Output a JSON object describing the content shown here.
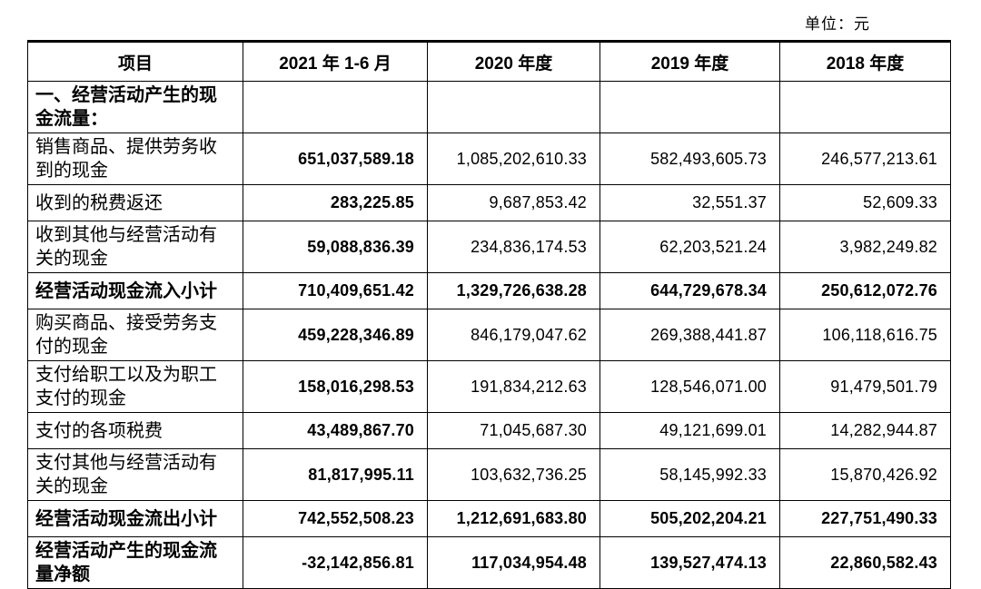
{
  "page": {
    "unit_label": "单位：元"
  },
  "table": {
    "columns": [
      "项目",
      "2021 年 1-6 月",
      "2020 年度",
      "2019 年度",
      "2018 年度"
    ],
    "rows": [
      {
        "label": "一、经营活动产生的现金流量：",
        "bold_label": true,
        "bold_values": false,
        "values": [
          "",
          "",
          "",
          ""
        ]
      },
      {
        "label": "销售商品、提供劳务收到的现金",
        "bold_label": false,
        "bold_values": false,
        "values": [
          "651,037,589.18",
          "1,085,202,610.33",
          "582,493,605.73",
          "246,577,213.61"
        ]
      },
      {
        "label": "收到的税费返还",
        "bold_label": false,
        "bold_values": false,
        "values": [
          "283,225.85",
          "9,687,853.42",
          "32,551.37",
          "52,609.33"
        ]
      },
      {
        "label": "收到其他与经营活动有关的现金",
        "bold_label": false,
        "bold_values": false,
        "values": [
          "59,088,836.39",
          "234,836,174.53",
          "62,203,521.24",
          "3,982,249.82"
        ]
      },
      {
        "label": "经营活动现金流入小计",
        "bold_label": true,
        "bold_values": true,
        "values": [
          "710,409,651.42",
          "1,329,726,638.28",
          "644,729,678.34",
          "250,612,072.76"
        ]
      },
      {
        "label": "购买商品、接受劳务支付的现金",
        "bold_label": false,
        "bold_values": false,
        "values": [
          "459,228,346.89",
          "846,179,047.62",
          "269,388,441.87",
          "106,118,616.75"
        ]
      },
      {
        "label": "支付给职工以及为职工支付的现金",
        "bold_label": false,
        "bold_values": false,
        "values": [
          "158,016,298.53",
          "191,834,212.63",
          "128,546,071.00",
          "91,479,501.79"
        ]
      },
      {
        "label": "支付的各项税费",
        "bold_label": false,
        "bold_values": false,
        "values": [
          "43,489,867.70",
          "71,045,687.30",
          "49,121,699.01",
          "14,282,944.87"
        ]
      },
      {
        "label": "支付其他与经营活动有关的现金",
        "bold_label": false,
        "bold_values": false,
        "values": [
          "81,817,995.11",
          "103,632,736.25",
          "58,145,992.33",
          "15,870,426.92"
        ]
      },
      {
        "label": "经营活动现金流出小计",
        "bold_label": true,
        "bold_values": true,
        "values": [
          "742,552,508.23",
          "1,212,691,683.80",
          "505,202,204.21",
          "227,751,490.33"
        ]
      },
      {
        "label": "经营活动产生的现金流量净额",
        "bold_label": true,
        "bold_values": true,
        "values": [
          "-32,142,856.81",
          "117,034,954.48",
          "139,527,474.13",
          "22,860,582.43"
        ]
      }
    ]
  }
}
